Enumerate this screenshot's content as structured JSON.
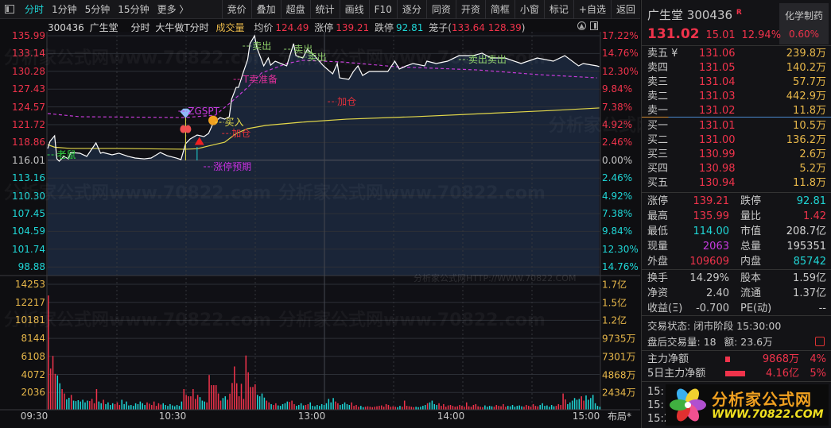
{
  "toolbar": {
    "tabs": [
      "分时",
      "1分钟",
      "5分钟",
      "15分钟",
      "更多 〉"
    ],
    "active": 0,
    "buttons": [
      "竞价",
      "叠加",
      "超盘",
      "统计",
      "画线",
      "F10",
      "逐分",
      "同资",
      "开资",
      "简框",
      "小窗",
      "标记",
      "+自选",
      "返回"
    ]
  },
  "info": {
    "code": "300436",
    "name": "广生堂",
    "mode": "分时",
    "formula": "大牛做T分时",
    "volume_label": "成交量",
    "avg_label": "均价",
    "avg": "124.49",
    "limit_up_label": "涨停",
    "limit_up": "139.21",
    "limit_down_label": "跌停",
    "limit_down": "92.81",
    "cage_label": "笼子(",
    "cage_values": "133.64 128.39",
    "cage_close": ")"
  },
  "watermarks": [
    "分析家公式网www.70822.com",
    "分析家公式网HTTP://WWW.70822.COM"
  ],
  "colors": {
    "up": "#f0334b",
    "down": "#1fd6d6",
    "price_line": "#ffffff",
    "avg_line": "#e3d84a",
    "indicator_line": "#c63bd8",
    "area": "#1a2538",
    "volume_axis": "#e8b84a"
  },
  "chart_data": {
    "type": "line",
    "price_ticks": [
      "135.99",
      "133.14",
      "130.28",
      "127.43",
      "124.57",
      "121.72",
      "118.86",
      "116.01",
      "113.16",
      "110.30",
      "107.45",
      "104.59",
      "101.74",
      "98.88"
    ],
    "pct_ticks": [
      "17.22%",
      "14.76%",
      "12.30%",
      "9.84%",
      "7.38%",
      "4.92%",
      "2.46%",
      "0.00%",
      "2.46%",
      "4.92%",
      "7.38%",
      "9.84%",
      "12.30%",
      "14.76%"
    ],
    "prev_close": 116.01,
    "volume_ticks": [
      "14253",
      "12217",
      "10181",
      "8144",
      "6108",
      "4072",
      "2036"
    ],
    "amount_ticks": [
      "1.7亿",
      "1.5亿",
      "1.2亿",
      "9735万",
      "7301万",
      "4868万",
      "2434万"
    ],
    "time_ticks": [
      "09:30",
      "10:30",
      "13:00",
      "14:00",
      "15:00"
    ],
    "layout_button": "布局*",
    "price": [
      [
        "09:30",
        117.89
      ],
      [
        "09:31",
        119.04
      ],
      [
        "09:33",
        119.93
      ],
      [
        "09:34",
        116.23
      ],
      [
        "09:35",
        115.85
      ],
      [
        "09:37",
        116.62
      ],
      [
        "09:39",
        116.23
      ],
      [
        "09:40",
        117.25
      ],
      [
        "09:44",
        117.13
      ],
      [
        "09:47",
        116.62
      ],
      [
        "09:51",
        118.78
      ],
      [
        "09:53",
        117.13
      ],
      [
        "09:54",
        117.25
      ],
      [
        "09:58",
        116.87
      ],
      [
        "10:01",
        117.13
      ],
      [
        "10:05",
        116.62
      ],
      [
        "10:08",
        116.36
      ],
      [
        "10:12",
        116.23
      ],
      [
        "10:15",
        116.36
      ],
      [
        "10:19",
        117.25
      ],
      [
        "10:22",
        116.74
      ],
      [
        "10:26",
        116.36
      ],
      [
        "10:28",
        116.11
      ],
      [
        "10:30",
        118.66
      ],
      [
        "10:32",
        119.42
      ],
      [
        "10:35",
        120.06
      ],
      [
        "10:38",
        119.8
      ],
      [
        "10:40",
        120.31
      ],
      [
        "10:42",
        121.97
      ],
      [
        "10:45",
        122.86
      ],
      [
        "10:47",
        122.61
      ],
      [
        "10:49",
        122.99
      ],
      [
        "10:50",
        125.79
      ],
      [
        "10:52",
        127.7
      ],
      [
        "10:53",
        127.7
      ],
      [
        "10:55",
        130.0
      ],
      [
        "10:57",
        132.17
      ],
      [
        "10:58",
        134.72
      ],
      [
        "10:59",
        135.35
      ],
      [
        "11:00",
        135.99
      ],
      [
        "11:01",
        134.08
      ],
      [
        "11:04",
        131.15
      ],
      [
        "11:06",
        132.42
      ],
      [
        "11:07",
        131.27
      ],
      [
        "11:09",
        131.91
      ],
      [
        "11:14",
        131.15
      ],
      [
        "11:17",
        134.72
      ],
      [
        "11:18",
        132.8
      ],
      [
        "11:21",
        132.42
      ],
      [
        "11:23",
        133.82
      ],
      [
        "11:26",
        132.8
      ],
      [
        "13:00",
        131.15
      ],
      [
        "13:04",
        129.87
      ],
      [
        "13:06",
        131.53
      ],
      [
        "13:07",
        129.23
      ],
      [
        "13:11",
        128.98
      ],
      [
        "13:13",
        130.25
      ],
      [
        "13:15",
        131.15
      ],
      [
        "13:17",
        129.62
      ],
      [
        "13:20",
        130.25
      ],
      [
        "13:28",
        130.25
      ],
      [
        "13:31",
        131.91
      ],
      [
        "13:33",
        130.64
      ],
      [
        "13:36",
        131.15
      ],
      [
        "13:39",
        131.53
      ],
      [
        "13:44",
        131.15
      ],
      [
        "13:45",
        131.91
      ],
      [
        "13:49",
        131.53
      ],
      [
        "13:54",
        131.91
      ],
      [
        "13:59",
        132.8
      ],
      [
        "14:05",
        132.8
      ],
      [
        "14:09",
        133.19
      ],
      [
        "14:13",
        132.42
      ],
      [
        "14:19",
        132.42
      ],
      [
        "14:26",
        131.53
      ],
      [
        "14:33",
        132.42
      ],
      [
        "14:40",
        131.91
      ],
      [
        "14:45",
        132.8
      ],
      [
        "14:51",
        131.15
      ],
      [
        "14:53",
        131.53
      ],
      [
        "14:59",
        131.15
      ],
      [
        "15:00",
        131.02
      ]
    ],
    "avg": [
      [
        "09:30",
        118.5
      ],
      [
        "09:33",
        118.1
      ],
      [
        "09:40",
        117.9
      ],
      [
        "10:00",
        117.9
      ],
      [
        "10:30",
        117.77
      ],
      [
        "10:35",
        117.85
      ],
      [
        "10:40",
        118.3
      ],
      [
        "10:47",
        118.9
      ],
      [
        "10:52",
        120.3
      ],
      [
        "10:57",
        121.08
      ],
      [
        "11:05",
        121.6
      ],
      [
        "11:20",
        122.1
      ],
      [
        "13:10",
        122.6
      ],
      [
        "13:40",
        123.0
      ],
      [
        "14:10",
        123.5
      ],
      [
        "14:40",
        124.0
      ],
      [
        "15:00",
        124.4
      ]
    ],
    "indicator": [
      [
        "09:30",
        123.5
      ],
      [
        "09:44",
        122.99
      ],
      [
        "10:30",
        122.86
      ],
      [
        "10:43",
        123.25
      ],
      [
        "10:50",
        125.4
      ],
      [
        "10:57",
        127.7
      ],
      [
        "11:03",
        130.0
      ],
      [
        "11:14",
        131.53
      ],
      [
        "11:21",
        132.04
      ],
      [
        "13:08",
        131.78
      ],
      [
        "13:32",
        131.0
      ],
      [
        "14:07",
        130.5
      ],
      [
        "14:34",
        129.74
      ],
      [
        "14:59",
        129.23
      ]
    ],
    "volume": [
      13090,
      4690,
      6140,
      4080,
      3900,
      3000,
      2330,
      1820,
      1150,
      1330,
      1660,
      1000,
      950,
      1050,
      900,
      1100,
      800,
      1000,
      950,
      1200,
      700,
      2330,
      900,
      700,
      1100,
      600,
      800,
      500,
      700,
      600,
      800,
      500,
      1100,
      600,
      900,
      450,
      500,
      400,
      700,
      600,
      900,
      700,
      500,
      800,
      650,
      500,
      900,
      400,
      700,
      550,
      700,
      500,
      400,
      600,
      450,
      350,
      500,
      400,
      900,
      2330,
      1660,
      1500,
      1500,
      2330,
      1200,
      1660,
      1400,
      1000,
      900,
      800,
      3950,
      2780,
      2780,
      2780,
      1820,
      1000,
      1300,
      1500,
      1100,
      1800,
      3030,
      4930,
      3000,
      1500,
      2940,
      1200,
      6190,
      4260,
      2570,
      2570,
      2880,
      1660,
      1500,
      1820,
      1350,
      1000,
      800,
      600,
      500,
      700,
      450,
      400,
      600,
      700,
      900,
      850,
      1000,
      600,
      400,
      500,
      700,
      450,
      500,
      600,
      800,
      400,
      350,
      500,
      400,
      600,
      500,
      700,
      1200,
      800,
      1300,
      900,
      700,
      500,
      600,
      800,
      600,
      500,
      800,
      400,
      500,
      300,
      400,
      250,
      300,
      350,
      300,
      250,
      300,
      350,
      400,
      450,
      300,
      600,
      500,
      300,
      350,
      300,
      250,
      400,
      300,
      1000,
      400,
      350,
      300,
      250,
      300,
      250,
      300,
      400,
      500,
      700,
      800,
      1000,
      600,
      500,
      700,
      400,
      600,
      300,
      450,
      500,
      400,
      300,
      350,
      500,
      400,
      300,
      800,
      350,
      300,
      500,
      600,
      350,
      300,
      250,
      450,
      300,
      400,
      350,
      300,
      500,
      400,
      350,
      600,
      300,
      400,
      350,
      500,
      300,
      400,
      450,
      350,
      300,
      500,
      400,
      300,
      600,
      400,
      350,
      500,
      700,
      400,
      450,
      300,
      500,
      350,
      400,
      600,
      500,
      1820,
      1150,
      600,
      800,
      1000,
      1300,
      1100,
      1200,
      1500,
      1000,
      1600,
      1100,
      1300,
      1660,
      700,
      400,
      300
    ],
    "annotations": [
      {
        "text": "卖出",
        "time": "10:59",
        "price": 134.33,
        "color": "#8fd16a"
      },
      {
        "text": "卖出",
        "time": "11:17",
        "price": 133.82,
        "color": "#8fd16a"
      },
      {
        "text": "卖出",
        "time": "11:23",
        "price": 132.55,
        "color": "#8fd16a"
      },
      {
        "text": "卖出卖出",
        "time": "14:03",
        "price": 132.17,
        "color": "#8fd16a"
      },
      {
        "text": "T卖准备",
        "time": "10:55",
        "price": 128.98,
        "color": "#e0309a"
      },
      {
        "text": "买入",
        "time": "10:47",
        "price": 122.1,
        "color": "#e8e04a"
      },
      {
        "text": "加仓",
        "time": "10:50",
        "price": 120.3,
        "color": "#e0303a"
      },
      {
        "text": "加仓",
        "time": "13:06",
        "price": 125.4,
        "color": "#e0303a"
      },
      {
        "text": "ZGSPT",
        "time": "10:31",
        "price": 123.88,
        "color": "#c83be0"
      },
      {
        "text": "涨停预期",
        "time": "10:42",
        "price": 114.96,
        "color": "#c830e0"
      },
      {
        "text": "老鼠",
        "time": "09:34",
        "price": 116.87,
        "color": "#30d040"
      }
    ],
    "markers": [
      {
        "icon": "diamond",
        "time": "10:30",
        "price": 123.4
      },
      {
        "icon": "butterfly",
        "time": "10:30",
        "price": 121.0
      },
      {
        "icon": "orange",
        "time": "10:42",
        "price": 122.4
      },
      {
        "icon": "triangle-up",
        "time": "10:36",
        "price": 119.1
      }
    ]
  },
  "panel": {
    "name": "广生堂",
    "code": "300436",
    "flag": "R",
    "sector": "化学制药",
    "price": "131.02",
    "change": "15.01",
    "change_pct": "12.94%",
    "sector_pct": "0.60%",
    "asks": [
      {
        "label": "卖五 ¥",
        "price": "131.06",
        "vol": "239.8万"
      },
      {
        "label": "卖四",
        "price": "131.05",
        "vol": "140.2万"
      },
      {
        "label": "卖三",
        "price": "131.04",
        "vol": "57.7万"
      },
      {
        "label": "卖二",
        "price": "131.03",
        "vol": "442.9万"
      },
      {
        "label": "卖一",
        "price": "131.02",
        "vol": "11.8万"
      }
    ],
    "bids": [
      {
        "label": "买一",
        "price": "131.01",
        "vol": "10.5万"
      },
      {
        "label": "买二",
        "price": "131.00",
        "vol": "136.2万"
      },
      {
        "label": "买三",
        "price": "130.99",
        "vol": "2.6万"
      },
      {
        "label": "买四",
        "price": "130.98",
        "vol": "5.2万"
      },
      {
        "label": "买五",
        "price": "130.94",
        "vol": "11.8万"
      }
    ],
    "stats": [
      [
        "涨停",
        "139.21",
        "red",
        "跌停",
        "92.81",
        "cyan"
      ],
      [
        "最高",
        "135.99",
        "red",
        "量比",
        "1.42",
        "red"
      ],
      [
        "最低",
        "114.00",
        "cyan",
        "市值",
        "208.7亿",
        "white"
      ],
      [
        "现量",
        "2063",
        "purple",
        "总量",
        "195351",
        "white"
      ],
      [
        "外盘",
        "109609",
        "red",
        "内盘",
        "85742",
        "cyan"
      ]
    ],
    "stats2": [
      [
        "换手",
        "14.29%",
        "股本",
        "1.59亿"
      ],
      [
        "净资",
        "2.40",
        "流通",
        "1.37亿"
      ],
      [
        "收益(Ξ)",
        "-0.700",
        "PE(动)",
        "--"
      ]
    ],
    "status_label": "交易状态:",
    "status": "闭市阶段 15:30:00",
    "after_label": "盘后交易量:",
    "after_vol": "18",
    "after_amt_label": "额:",
    "after_amt": "23.6万",
    "flow": [
      {
        "label": "主力净额",
        "value": "9868万",
        "pct": "4%",
        "bar": 0.1
      },
      {
        "label": "5日主力净额",
        "value": "4.16亿",
        "pct": "5%",
        "bar": 0.45
      }
    ],
    "ticks": [
      "15:",
      "15:",
      "15:2"
    ],
    "logo_text": "分析家公式网",
    "logo_url": "WWW.70822.COM"
  }
}
